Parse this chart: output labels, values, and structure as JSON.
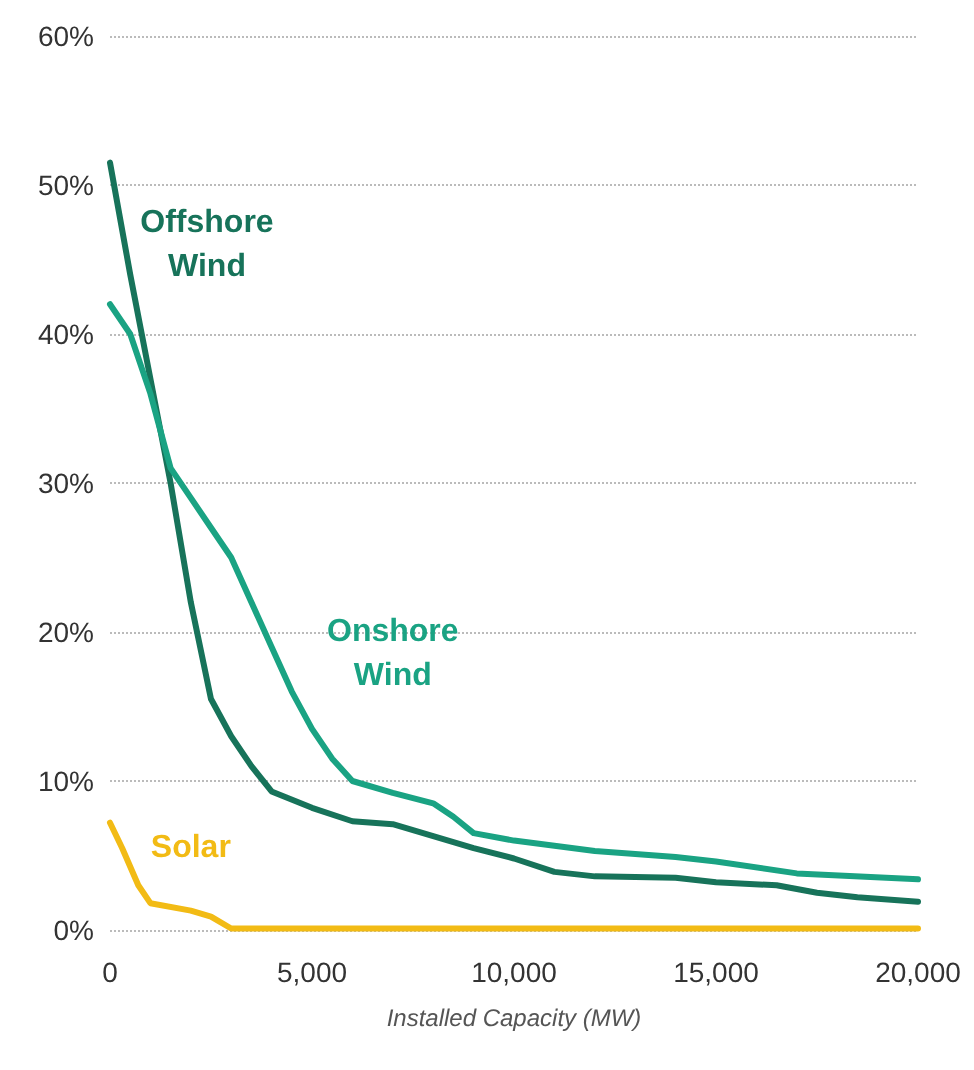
{
  "chart_data": {
    "type": "line",
    "xlabel": "Installed Capacity (MW)",
    "xlim": [
      0,
      20000
    ],
    "xticks": [
      {
        "value": 0,
        "label": "0"
      },
      {
        "value": 5000,
        "label": "5,000"
      },
      {
        "value": 10000,
        "label": "10,000"
      },
      {
        "value": 15000,
        "label": "15,000"
      },
      {
        "value": 20000,
        "label": "20,000"
      }
    ],
    "ylim": [
      0,
      60
    ],
    "yticks": [
      {
        "value": 0,
        "label": "0%"
      },
      {
        "value": 10,
        "label": "10%"
      },
      {
        "value": 20,
        "label": "20%"
      },
      {
        "value": 30,
        "label": "30%"
      },
      {
        "value": 40,
        "label": "40%"
      },
      {
        "value": 50,
        "label": "50%"
      },
      {
        "value": 60,
        "label": "60%"
      }
    ],
    "grid": "y",
    "marker": "none",
    "line_style": "solid",
    "series": [
      {
        "name": "Offshore Wind",
        "color": "#17735a",
        "x": [
          0,
          500,
          1000,
          1500,
          2000,
          2500,
          3000,
          3500,
          4000,
          5000,
          6000,
          7000,
          8000,
          9000,
          10000,
          11000,
          12000,
          14000,
          15000,
          16500,
          17500,
          18500,
          20000
        ],
        "values": [
          51.5,
          44,
          37,
          30,
          22,
          15.5,
          13,
          11,
          9.3,
          8.2,
          7.3,
          7.1,
          6.3,
          5.5,
          4.8,
          3.9,
          3.6,
          3.5,
          3.2,
          3.0,
          2.5,
          2.2,
          1.9
        ]
      },
      {
        "name": "Onshore Wind",
        "color": "#1aa383",
        "x": [
          0,
          500,
          1000,
          1500,
          2000,
          2500,
          3000,
          3500,
          4000,
          4500,
          5000,
          5500,
          6000,
          7000,
          8000,
          8500,
          9000,
          10000,
          12000,
          14000,
          15000,
          17000,
          20000
        ],
        "values": [
          42,
          40,
          36,
          31,
          29,
          27,
          25,
          22,
          19,
          16,
          13.5,
          11.5,
          10,
          9.2,
          8.5,
          7.6,
          6.5,
          6.0,
          5.3,
          4.9,
          4.6,
          3.8,
          3.4
        ]
      },
      {
        "name": "Solar",
        "color": "#f2bb15",
        "x": [
          0,
          300,
          700,
          1000,
          2000,
          2500,
          3000,
          20000
        ],
        "values": [
          7.2,
          5.5,
          3,
          1.8,
          1.3,
          0.9,
          0.1,
          0.1
        ]
      }
    ]
  }
}
